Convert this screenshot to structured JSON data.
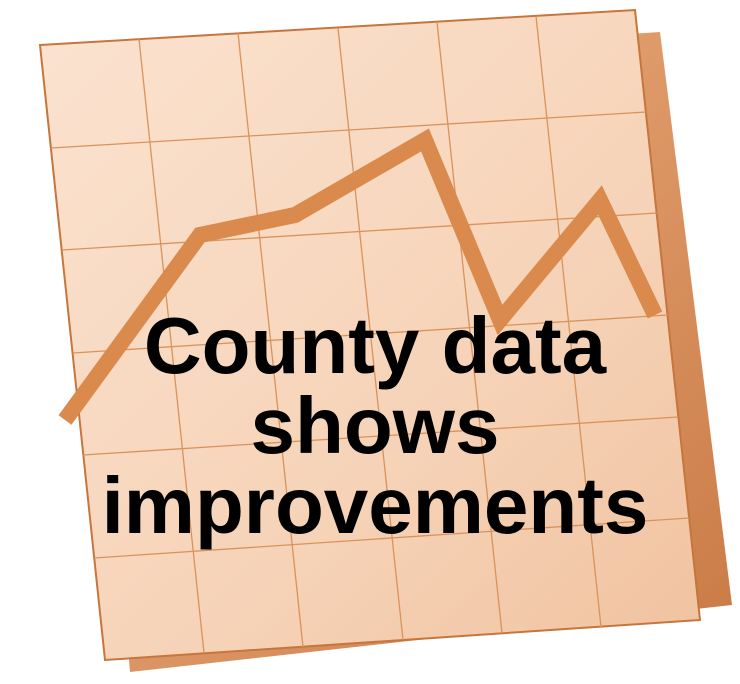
{
  "headline": {
    "lines": [
      "County data",
      "shows",
      "improvements"
    ]
  }
}
